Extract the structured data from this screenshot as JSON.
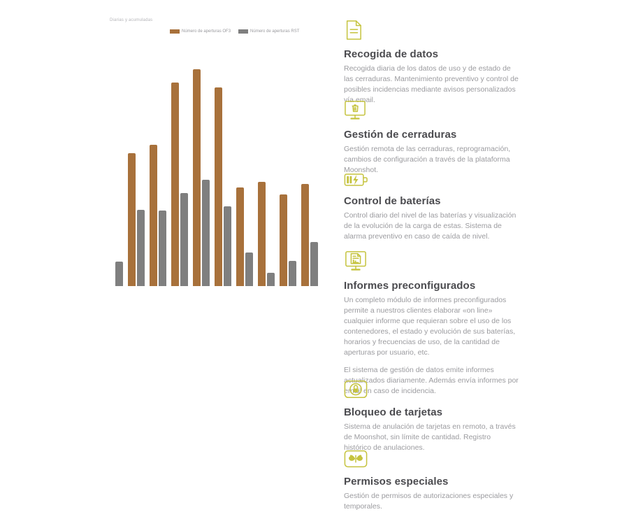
{
  "colors": {
    "accent": "#c5c33e",
    "bar_brown": "#a8713b",
    "bar_gray": "#7f7f7f",
    "heading": "#4b4b4f",
    "body_text": "#9b9b9f"
  },
  "chart": {
    "title": "Diarias y acumuladas",
    "legend": [
      {
        "label": "Número de aperturas OF3",
        "color": "#a8713b"
      },
      {
        "label": "Número de aperturas RST",
        "color": "#7f7f7f"
      }
    ]
  },
  "chart_data": {
    "type": "bar",
    "title": "Diarias y acumuladas",
    "categories": [
      "",
      "",
      "",
      "",
      "",
      "",
      "",
      "",
      "",
      ""
    ],
    "series": [
      {
        "name": "Número de aperturas OF3",
        "color": "#a8713b",
        "values": [
          0,
          190,
          202,
          291,
          310,
          284,
          141,
          149,
          131,
          146
        ]
      },
      {
        "name": "Número de aperturas RST",
        "color": "#7f7f7f",
        "values": [
          35,
          109,
          108,
          133,
          152,
          114,
          48,
          19,
          36,
          63
        ]
      }
    ],
    "xlabel": "",
    "ylabel": "",
    "ylim": [
      0,
      310
    ],
    "grid": false,
    "legend_position": "top",
    "axes_visible": false
  },
  "features": {
    "sections": [
      {
        "icon": "document-icon",
        "title": "Recogida de datos",
        "body1": "Recogida diaria de los datos de uso y de estado de las cerraduras. Mantenimiento preventivo y control de posibles incidencias mediante avisos personalizados vía email.",
        "body2": ""
      },
      {
        "icon": "monitor-trash-icon",
        "title": "Gestión de cerraduras",
        "body1": "Gestión remota de las cerraduras, reprogramación, cambios de configuración a través de la plataforma Moonshot.",
        "body2": ""
      },
      {
        "icon": "battery-charging-icon",
        "title": "Control de baterías",
        "body1": "Control diario del nivel de las baterías y visualización de la evolución de la carga de estas. Sistema de alarma preventivo en caso de caída de nivel.",
        "body2": ""
      },
      {
        "icon": "monitor-report-icon",
        "title": "Informes preconfigurados",
        "body1": "Un completo módulo de informes preconfigurados permite a nuestros clientes elaborar «on line» cualquier informe que requieran sobre el uso de los contenedores, el estado y evolución de sus baterías, horarios y frecuencias de uso, de la cantidad de aperturas por usuario, etc.",
        "body2": "El sistema de gestión de datos emite informes actualizados diariamente. Además envía informes por email en caso de incidencia."
      },
      {
        "icon": "card-lock-icon",
        "title": "Bloqueo de tarjetas",
        "body1": "Sistema de anulación de tarjetas en remoto, a través de Moonshot, sin límite de cantidad. Registro histórico de anulaciones.",
        "body2": ""
      },
      {
        "icon": "butterfly-icon",
        "title": "Permisos especiales",
        "body1": "Gestión de permisos de autorizaciones especiales y temporales.",
        "body2": ""
      }
    ]
  }
}
